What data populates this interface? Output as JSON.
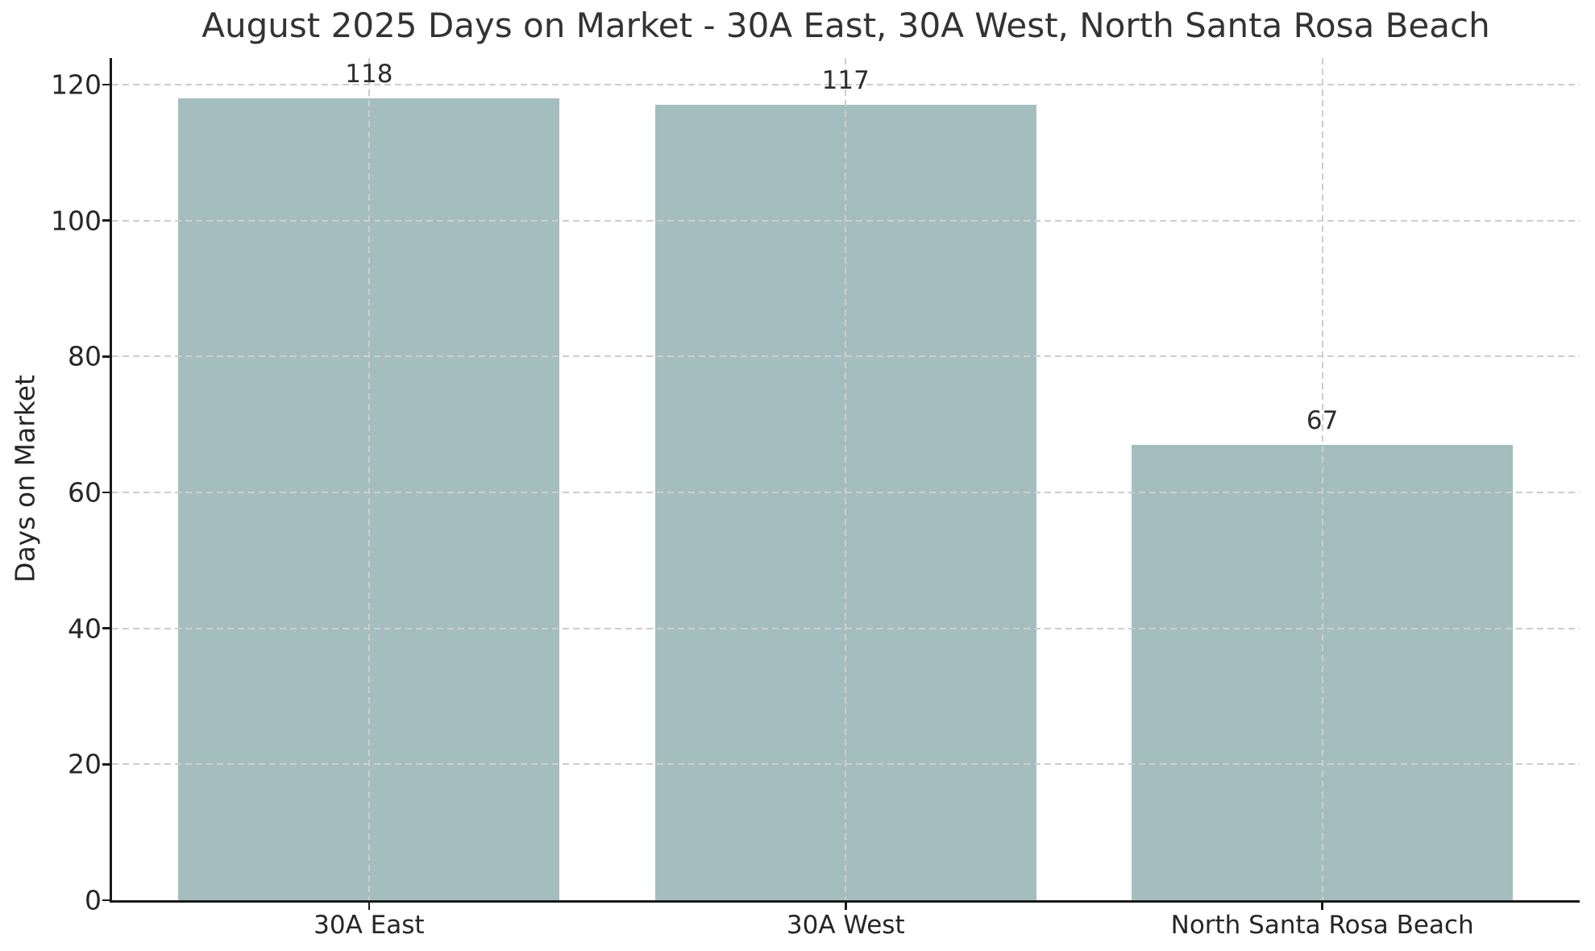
{
  "chart_data": {
    "type": "bar",
    "title": "August 2025 Days on Market - 30A East, 30A West, North Santa Rosa Beach",
    "ylabel": "Days on Market",
    "xlabel": "",
    "categories": [
      "30A East",
      "30A West",
      "North Santa Rosa Beach"
    ],
    "values": [
      118,
      117,
      67
    ],
    "value_labels": [
      "118",
      "117",
      "67"
    ],
    "yticks": [
      0,
      20,
      40,
      60,
      80,
      100,
      120
    ],
    "ylim": [
      0,
      123.9
    ],
    "xlim": [
      -0.54,
      2.54
    ],
    "bar_width": 0.8,
    "grid": true,
    "grid_style": "dashed",
    "legend": "none",
    "colors": {
      "bar": "#a4bebf",
      "grid": "#cdcdcd",
      "axis": "#1a1a1a",
      "text": "#262626",
      "background": "#ffffff"
    }
  }
}
